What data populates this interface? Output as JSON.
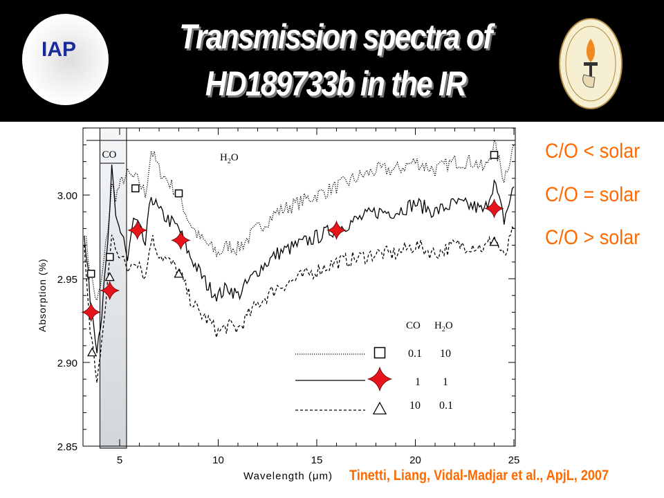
{
  "header": {
    "title_line1": "Transmission spectra of",
    "title_line2": "HD189733b in the IR",
    "left_logo": {
      "name": "IAP",
      "text": "IAP"
    },
    "right_logo": {
      "name": "California Institute of Technology seal",
      "text": "CALIFORNIA INSTITUTE OF TECHNOLOGY 1891"
    }
  },
  "side_labels": [
    "C/O < solar",
    "C/O = solar",
    "C/O > solar"
  ],
  "citation": "Tinetti, Liang, Vidal-Madjar et al., ApjL, 2007",
  "colors": {
    "accent": "#ff6a00",
    "marker": "#e8141c",
    "co_band": "#dfe3e6"
  },
  "chart_data": {
    "type": "line",
    "title": "",
    "xlabel": "Wavelength (μm)",
    "ylabel": "Absorption (%)",
    "xlim": [
      3.15,
      25
    ],
    "ylim": [
      2.85,
      3.04
    ],
    "xticks": [
      "5",
      "10",
      "15",
      "20",
      "25"
    ],
    "xtick_values": [
      5,
      10,
      15,
      20,
      25
    ],
    "yticks": [
      "2.85",
      "2.90",
      "2.95",
      "3.00"
    ],
    "ytick_values": [
      2.85,
      2.9,
      2.95,
      3.0
    ],
    "annotations": {
      "co_band": {
        "label": "CO",
        "range": [
          4.0,
          5.35
        ]
      },
      "h2o_band": {
        "label": "H2O",
        "label_main": "H",
        "label_sub": "2",
        "label_end": "O",
        "range": [
          3.2,
          25
        ]
      }
    },
    "x": [
      3.2,
      3.5,
      3.85,
      4.1,
      4.4,
      4.6,
      4.8,
      5.2,
      5.4,
      5.7,
      6.0,
      6.3,
      6.6,
      7,
      8,
      8.5,
      9,
      9.5,
      10,
      10.5,
      11,
      12,
      13,
      14,
      15,
      16,
      17,
      18,
      19,
      20,
      21,
      22,
      23,
      23.5,
      24,
      24.5,
      25
    ],
    "series": [
      {
        "name": "CO 0.1, H2O 10 (C/O < solar)",
        "style": "dotted",
        "marker": "square",
        "values": [
          2.98,
          2.955,
          2.935,
          2.95,
          2.98,
          3.005,
          3.0,
          3.01,
          3.012,
          3.01,
          3.008,
          3.0,
          3.027,
          3.015,
          3.0,
          2.985,
          2.975,
          2.97,
          2.965,
          2.97,
          2.968,
          2.98,
          2.99,
          2.995,
          3.0,
          3.005,
          3.01,
          3.015,
          3.015,
          3.02,
          3.015,
          3.02,
          3.02,
          3.015,
          3.03,
          3.01,
          3.03
        ],
        "band_points": [
          [
            3.55,
            2.953
          ],
          [
            4.5,
            2.963
          ],
          [
            5.8,
            3.004
          ],
          [
            8.0,
            3.001
          ],
          [
            24.0,
            3.024
          ]
        ]
      },
      {
        "name": "CO 1, H2O 1 (C/O = solar)",
        "style": "solid",
        "marker": "star",
        "values": [
          2.975,
          2.94,
          2.91,
          2.93,
          2.97,
          3.015,
          2.985,
          2.975,
          2.96,
          2.985,
          2.98,
          2.97,
          3.0,
          2.99,
          2.98,
          2.965,
          2.955,
          2.945,
          2.94,
          2.945,
          2.94,
          2.955,
          2.965,
          2.97,
          2.975,
          2.98,
          2.985,
          2.99,
          2.99,
          2.995,
          2.99,
          2.995,
          2.993,
          2.99,
          3.008,
          2.985,
          3.005
        ],
        "band_points": [
          [
            3.55,
            2.93
          ],
          [
            4.5,
            2.943
          ],
          [
            5.9,
            2.979
          ],
          [
            8.1,
            2.973
          ],
          [
            16.0,
            2.979
          ],
          [
            24.0,
            2.992
          ]
        ]
      },
      {
        "name": "CO 10, H2O 0.1 (C/O > solar)",
        "style": "dashed",
        "marker": "triangle",
        "values": [
          2.97,
          2.92,
          2.89,
          2.91,
          2.95,
          2.975,
          2.97,
          2.96,
          2.955,
          2.962,
          2.96,
          2.95,
          2.975,
          2.965,
          2.955,
          2.94,
          2.93,
          2.925,
          2.918,
          2.922,
          2.92,
          2.935,
          2.945,
          2.95,
          2.955,
          2.96,
          2.962,
          2.965,
          2.965,
          2.97,
          2.965,
          2.97,
          2.97,
          2.968,
          2.975,
          2.962,
          2.98
        ],
        "band_points": [
          [
            3.6,
            2.906
          ],
          [
            4.5,
            2.951
          ],
          [
            8.0,
            2.953
          ],
          [
            24.0,
            2.972
          ]
        ]
      }
    ],
    "legend": {
      "placement": "bottom-right",
      "header_co": "CO",
      "header_h2o_main": "H",
      "header_h2o_sub": "2",
      "header_h2o_end": "O",
      "rows": [
        {
          "co": "0.1",
          "h2o": "10"
        },
        {
          "co": "1",
          "h2o": "1"
        },
        {
          "co": "10",
          "h2o": "0.1"
        }
      ]
    }
  }
}
